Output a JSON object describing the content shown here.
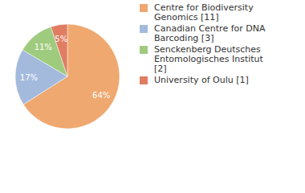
{
  "chart_data": {
    "type": "pie",
    "categories": [
      "Centre for Biodiversity Genomics [11]",
      "Canadian Centre for DNA Barcoding [3]",
      "Senckenberg Deutsches Entomologisches Institut [2]",
      "University of Oulu [1]"
    ],
    "values": [
      64,
      17,
      11,
      5
    ],
    "value_labels": [
      "64%",
      "17%",
      "11%",
      "5%"
    ],
    "colors": [
      "#efa870",
      "#a3badd",
      "#9fcb7e",
      "#e07d62"
    ],
    "data_labels": true,
    "legend": "top-right"
  }
}
